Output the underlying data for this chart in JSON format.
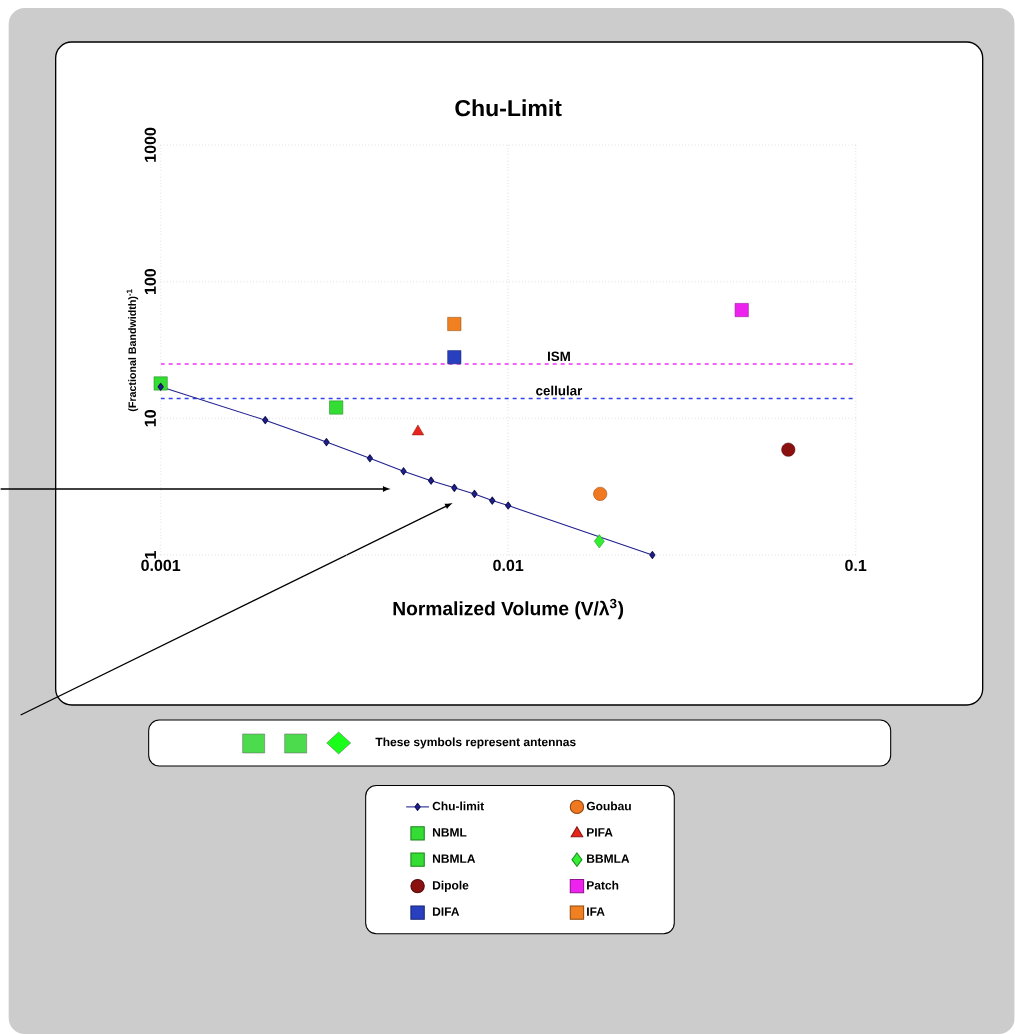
{
  "chart_data": {
    "type": "scatter",
    "title": "Chu-Limit",
    "xlabel": "Normalized Volume (V/λ$^{3}$)",
    "ylabel": "(Fractional Bandwidth)$^{-1}$",
    "log": "xy",
    "grid": true,
    "legend": "bottom",
    "xlim": [
      0.001,
      0.1
    ],
    "ylim": [
      1,
      1000
    ],
    "xticks": [
      0.001,
      0.01,
      0.1
    ],
    "yticks": [
      1,
      10,
      100,
      1000
    ],
    "series": [
      {
        "name": "Chu-limit",
        "type": "line",
        "marker": "diamond",
        "color": "#1f1f8f",
        "x": [
          0.001,
          0.002,
          0.003,
          0.004,
          0.005,
          0.006,
          0.007,
          0.008,
          0.009,
          0.01,
          0.026
        ],
        "values": [
          17,
          9.7,
          6.7,
          5.1,
          4.1,
          3.5,
          3.1,
          2.8,
          2.5,
          2.3,
          1
        ]
      },
      {
        "name": "Goubau",
        "marker": "circle",
        "color": "#f07820",
        "x": [
          0.0184
        ],
        "values": [
          2.8
        ]
      },
      {
        "name": "NBML",
        "marker": "square",
        "color": "#33dd33",
        "x": [
          0.0032
        ],
        "values": [
          12
        ]
      },
      {
        "name": "PIFA",
        "marker": "triangle",
        "color": "#e8251a",
        "x": [
          0.0055
        ],
        "values": [
          8
        ]
      },
      {
        "name": "NBMLA",
        "marker": "square",
        "color": "#33dd33",
        "x": [
          0.001
        ],
        "values": [
          18
        ]
      },
      {
        "name": "BBMLA",
        "marker": "diamond",
        "color": "#33ee33",
        "x": [
          0.0183
        ],
        "values": [
          1.26
        ]
      },
      {
        "name": "Dipole",
        "marker": "circle",
        "color": "#8b1010",
        "x": [
          0.064
        ],
        "values": [
          5.9
        ]
      },
      {
        "name": "Patch",
        "marker": "square",
        "color": "#ee22ee",
        "x": [
          0.047
        ],
        "values": [
          62
        ]
      },
      {
        "name": "DIFA",
        "marker": "square",
        "color": "#2840c0",
        "x": [
          0.007
        ],
        "values": [
          28
        ]
      },
      {
        "name": "IFA",
        "marker": "square",
        "color": "#f08020",
        "x": [
          0.007
        ],
        "values": [
          49
        ]
      }
    ],
    "ref_lines": [
      {
        "axis": "y",
        "value": 25,
        "label": "ISM",
        "color": "#ee33ee",
        "line_style": "dashed"
      },
      {
        "axis": "y",
        "value": 14,
        "label": "cellular",
        "color": "#3344ee",
        "line_style": "dashed"
      }
    ],
    "annotations": [
      "These symbols represent antennas"
    ]
  }
}
